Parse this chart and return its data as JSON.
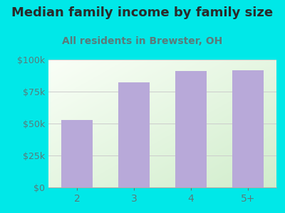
{
  "categories": [
    "2",
    "3",
    "4",
    "5+"
  ],
  "values": [
    53000,
    82000,
    91000,
    91500
  ],
  "bar_color": "#b8a9d9",
  "title": "Median family income by family size",
  "subtitle": "All residents in Brewster, OH",
  "title_color": "#2a2a2a",
  "subtitle_color": "#5a7a7a",
  "background_color": "#00e8e8",
  "plot_bg_color_tl": "#f0f8ee",
  "plot_bg_color_br": "#d4edd0",
  "ylim": [
    0,
    100000
  ],
  "yticks": [
    0,
    25000,
    50000,
    75000,
    100000
  ],
  "ytick_labels": [
    "$0",
    "$25k",
    "$50k",
    "$75k",
    "$100k"
  ],
  "tick_color": "#5a7a7a",
  "grid_color": "#cccccc",
  "title_fontsize": 13,
  "subtitle_fontsize": 10,
  "tick_fontsize": 9,
  "xtick_fontsize": 10
}
